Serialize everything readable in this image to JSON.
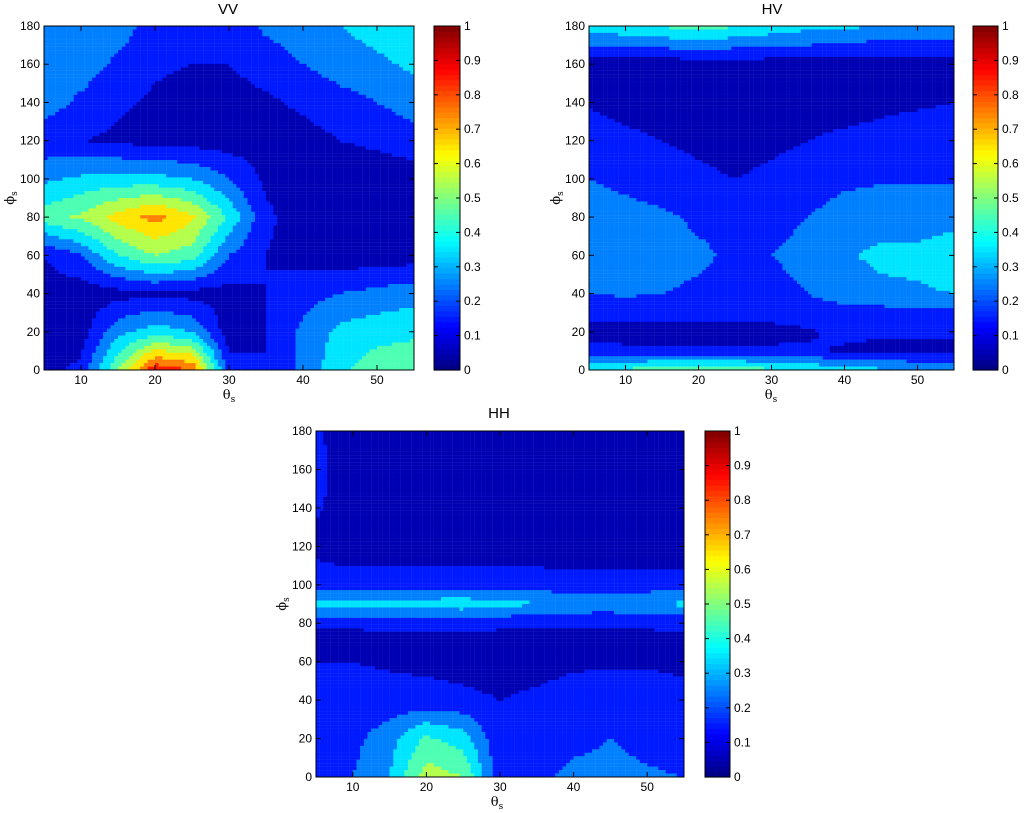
{
  "chart_data": [
    {
      "type": "heatmap",
      "subtype": "filled-contour",
      "title": "VV",
      "xlabel": "θ",
      "xlabel_sub": "s",
      "ylabel": "ϕ",
      "ylabel_sub": "s",
      "xlim": [
        5,
        55
      ],
      "ylim": [
        0,
        180
      ],
      "x_ticks": [
        "10",
        "20",
        "30",
        "40",
        "50"
      ],
      "y_ticks": [
        "0",
        "20",
        "40",
        "60",
        "80",
        "100",
        "120",
        "140",
        "160",
        "180"
      ],
      "colorbar_ticks": [
        "0",
        "0.1",
        "0.2",
        "0.3",
        "0.4",
        "0.5",
        "0.6",
        "0.7",
        "0.8",
        "0.9",
        "1"
      ],
      "clim": [
        0,
        1
      ],
      "colormap": "jet",
      "x": [
        5,
        10,
        15,
        20,
        25,
        30,
        35,
        40,
        45,
        50,
        55
      ],
      "y": [
        0,
        20,
        40,
        60,
        80,
        100,
        120,
        140,
        160,
        180
      ],
      "z": [
        [
          0.08,
          0.12,
          0.5,
          0.88,
          0.8,
          0.15,
          0.1,
          0.22,
          0.38,
          0.46,
          0.47
        ],
        [
          0.05,
          0.05,
          0.27,
          0.35,
          0.3,
          0.04,
          0.1,
          0.22,
          0.33,
          0.36,
          0.38
        ],
        [
          0.05,
          0.04,
          0.06,
          0.08,
          0.06,
          0.06,
          0.1,
          0.16,
          0.2,
          0.23,
          0.26
        ],
        [
          0.1,
          0.2,
          0.4,
          0.5,
          0.45,
          0.2,
          0.1,
          0.06,
          0.04,
          0.04,
          0.05
        ],
        [
          0.45,
          0.52,
          0.64,
          0.74,
          0.62,
          0.38,
          0.12,
          0.05,
          0.04,
          0.04,
          0.05
        ],
        [
          0.28,
          0.32,
          0.34,
          0.33,
          0.3,
          0.2,
          0.08,
          0.05,
          0.04,
          0.04,
          0.05
        ],
        [
          0.13,
          0.1,
          0.08,
          0.06,
          0.06,
          0.05,
          0.05,
          0.06,
          0.1,
          0.12,
          0.15
        ],
        [
          0.25,
          0.18,
          0.12,
          0.08,
          0.05,
          0.05,
          0.08,
          0.12,
          0.16,
          0.2,
          0.25
        ],
        [
          0.25,
          0.25,
          0.18,
          0.12,
          0.1,
          0.1,
          0.15,
          0.2,
          0.25,
          0.28,
          0.32
        ],
        [
          0.25,
          0.25,
          0.25,
          0.15,
          0.14,
          0.14,
          0.22,
          0.25,
          0.3,
          0.34,
          0.35
        ]
      ]
    },
    {
      "type": "heatmap",
      "subtype": "filled-contour",
      "title": "HV",
      "xlabel": "θ",
      "xlabel_sub": "s",
      "ylabel": "ϕ",
      "ylabel_sub": "s",
      "xlim": [
        5,
        55
      ],
      "ylim": [
        0,
        180
      ],
      "x_ticks": [
        "10",
        "20",
        "30",
        "40",
        "50"
      ],
      "y_ticks": [
        "0",
        "20",
        "40",
        "60",
        "80",
        "100",
        "120",
        "140",
        "160",
        "180"
      ],
      "colorbar_ticks": [
        "0",
        "0.1",
        "0.2",
        "0.3",
        "0.4",
        "0.5",
        "0.6",
        "0.7",
        "0.8",
        "0.9",
        "1"
      ],
      "clim": [
        0,
        1
      ],
      "colormap": "jet",
      "x": [
        5,
        10,
        15,
        20,
        25,
        30,
        35,
        40,
        45,
        50,
        55
      ],
      "y": [
        0,
        10,
        20,
        30,
        40,
        60,
        80,
        100,
        120,
        140,
        160,
        170,
        180
      ],
      "z": [
        [
          0.4,
          0.42,
          0.45,
          0.48,
          0.46,
          0.42,
          0.38,
          0.35,
          0.32,
          0.3,
          0.3
        ],
        [
          0.14,
          0.13,
          0.13,
          0.12,
          0.12,
          0.12,
          0.11,
          0.09,
          0.07,
          0.07,
          0.07
        ],
        [
          0.05,
          0.04,
          0.04,
          0.03,
          0.04,
          0.06,
          0.09,
          0.12,
          0.12,
          0.12,
          0.12
        ],
        [
          0.15,
          0.15,
          0.15,
          0.15,
          0.15,
          0.15,
          0.15,
          0.16,
          0.16,
          0.16,
          0.16
        ],
        [
          0.2,
          0.21,
          0.2,
          0.18,
          0.16,
          0.16,
          0.2,
          0.25,
          0.28,
          0.29,
          0.3
        ],
        [
          0.24,
          0.26,
          0.25,
          0.22,
          0.18,
          0.2,
          0.24,
          0.29,
          0.32,
          0.32,
          0.35
        ],
        [
          0.25,
          0.24,
          0.22,
          0.18,
          0.16,
          0.16,
          0.2,
          0.24,
          0.26,
          0.26,
          0.27
        ],
        [
          0.2,
          0.17,
          0.14,
          0.12,
          0.1,
          0.12,
          0.15,
          0.18,
          0.19,
          0.19,
          0.19
        ],
        [
          0.15,
          0.12,
          0.1,
          0.08,
          0.06,
          0.08,
          0.1,
          0.12,
          0.13,
          0.14,
          0.14
        ],
        [
          0.09,
          0.07,
          0.05,
          0.04,
          0.03,
          0.04,
          0.05,
          0.06,
          0.08,
          0.09,
          0.1
        ],
        [
          0.04,
          0.04,
          0.04,
          0.05,
          0.05,
          0.05,
          0.04,
          0.04,
          0.04,
          0.05,
          0.06
        ],
        [
          0.2,
          0.21,
          0.23,
          0.24,
          0.23,
          0.22,
          0.2,
          0.18,
          0.17,
          0.16,
          0.16
        ],
        [
          0.36,
          0.38,
          0.41,
          0.44,
          0.41,
          0.36,
          0.33,
          0.32,
          0.3,
          0.3,
          0.3
        ]
      ]
    },
    {
      "type": "heatmap",
      "subtype": "filled-contour",
      "title": "HH",
      "xlabel": "θ",
      "xlabel_sub": "s",
      "ylabel": "ϕ",
      "ylabel_sub": "s",
      "xlim": [
        5,
        55
      ],
      "ylim": [
        0,
        180
      ],
      "x_ticks": [
        "10",
        "20",
        "30",
        "40",
        "50"
      ],
      "y_ticks": [
        "0",
        "20",
        "40",
        "60",
        "80",
        "100",
        "120",
        "140",
        "160",
        "180"
      ],
      "colorbar_ticks": [
        "0",
        "0.1",
        "0.2",
        "0.3",
        "0.4",
        "0.5",
        "0.6",
        "0.7",
        "0.8",
        "0.9",
        "1"
      ],
      "clim": [
        0,
        1
      ],
      "colormap": "jet",
      "x": [
        5,
        10,
        15,
        20,
        25,
        30,
        35,
        40,
        45,
        50,
        55
      ],
      "y": [
        0,
        20,
        40,
        60,
        70,
        80,
        90,
        100,
        120,
        140,
        160,
        180
      ],
      "z": [
        [
          0.19,
          0.2,
          0.3,
          0.55,
          0.5,
          0.13,
          0.18,
          0.22,
          0.22,
          0.21,
          0.2
        ],
        [
          0.17,
          0.17,
          0.26,
          0.42,
          0.35,
          0.12,
          0.14,
          0.18,
          0.2,
          0.18,
          0.16
        ],
        [
          0.14,
          0.13,
          0.13,
          0.13,
          0.12,
          0.1,
          0.12,
          0.15,
          0.15,
          0.14,
          0.13
        ],
        [
          0.1,
          0.1,
          0.09,
          0.08,
          0.07,
          0.06,
          0.06,
          0.08,
          0.09,
          0.09,
          0.08
        ],
        [
          0.06,
          0.06,
          0.05,
          0.05,
          0.05,
          0.04,
          0.04,
          0.05,
          0.06,
          0.06,
          0.06
        ],
        [
          0.12,
          0.12,
          0.13,
          0.13,
          0.14,
          0.13,
          0.12,
          0.12,
          0.12,
          0.12,
          0.13
        ],
        [
          0.34,
          0.34,
          0.34,
          0.35,
          0.36,
          0.33,
          0.31,
          0.27,
          0.26,
          0.3,
          0.32
        ],
        [
          0.14,
          0.14,
          0.15,
          0.15,
          0.16,
          0.15,
          0.15,
          0.14,
          0.14,
          0.14,
          0.14
        ],
        [
          0.08,
          0.05,
          0.04,
          0.04,
          0.04,
          0.04,
          0.04,
          0.04,
          0.04,
          0.04,
          0.04
        ],
        [
          0.11,
          0.06,
          0.04,
          0.04,
          0.04,
          0.04,
          0.04,
          0.04,
          0.04,
          0.04,
          0.04
        ],
        [
          0.12,
          0.06,
          0.04,
          0.04,
          0.04,
          0.04,
          0.04,
          0.04,
          0.04,
          0.04,
          0.04
        ],
        [
          0.11,
          0.06,
          0.04,
          0.04,
          0.04,
          0.04,
          0.04,
          0.04,
          0.04,
          0.04,
          0.04
        ]
      ]
    }
  ]
}
